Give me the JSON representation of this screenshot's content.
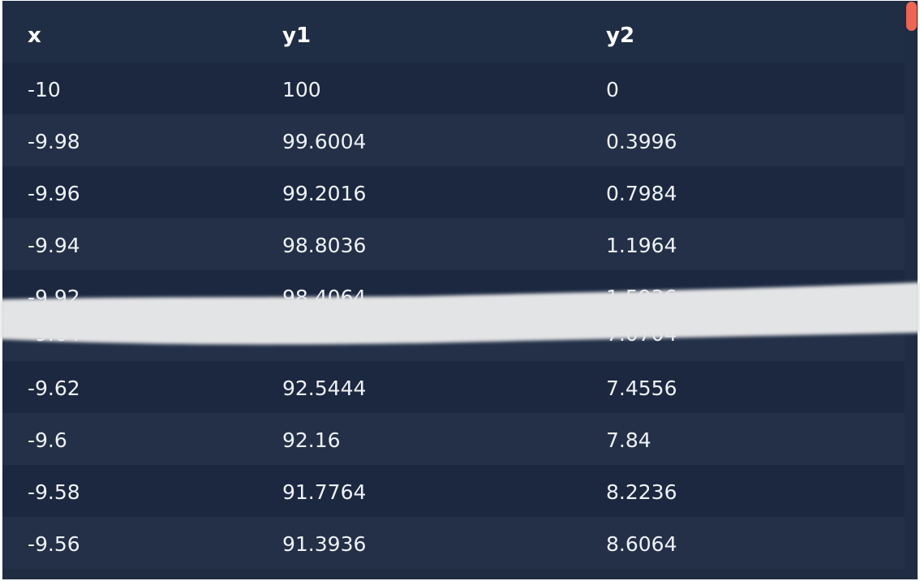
{
  "table": {
    "headers": {
      "x": "x",
      "y1": "y1",
      "y2": "y2"
    },
    "rows": [
      {
        "x": "-10",
        "y1": "100",
        "y2": "0"
      },
      {
        "x": "-9.98",
        "y1": "99.6004",
        "y2": "0.3996"
      },
      {
        "x": "-9.96",
        "y1": "99.2016",
        "y2": "0.7984"
      },
      {
        "x": "-9.94",
        "y1": "98.8036",
        "y2": "1.1964"
      },
      {
        "x": "-9.92",
        "y1": "98.4064",
        "y2": "1.5936"
      },
      {
        "x": "-9.64",
        "y1": "92.9296",
        "y2": "7.0704"
      },
      {
        "x": "-9.62",
        "y1": "92.5444",
        "y2": "7.4556"
      },
      {
        "x": "-9.6",
        "y1": "92.16",
        "y2": "7.84"
      },
      {
        "x": "-9.58",
        "y1": "91.7764",
        "y2": "8.2236"
      },
      {
        "x": "-9.56",
        "y1": "91.3936",
        "y2": "8.6064"
      }
    ]
  },
  "colors": {
    "background": "#1f2c41",
    "row_odd": "#1c2840",
    "row_even": "#233047",
    "text": "#eef2f7",
    "scrollbar_thumb": "#f06552",
    "redaction_stroke": "#e3e4e6"
  },
  "scrollbar": {
    "position": 0
  }
}
